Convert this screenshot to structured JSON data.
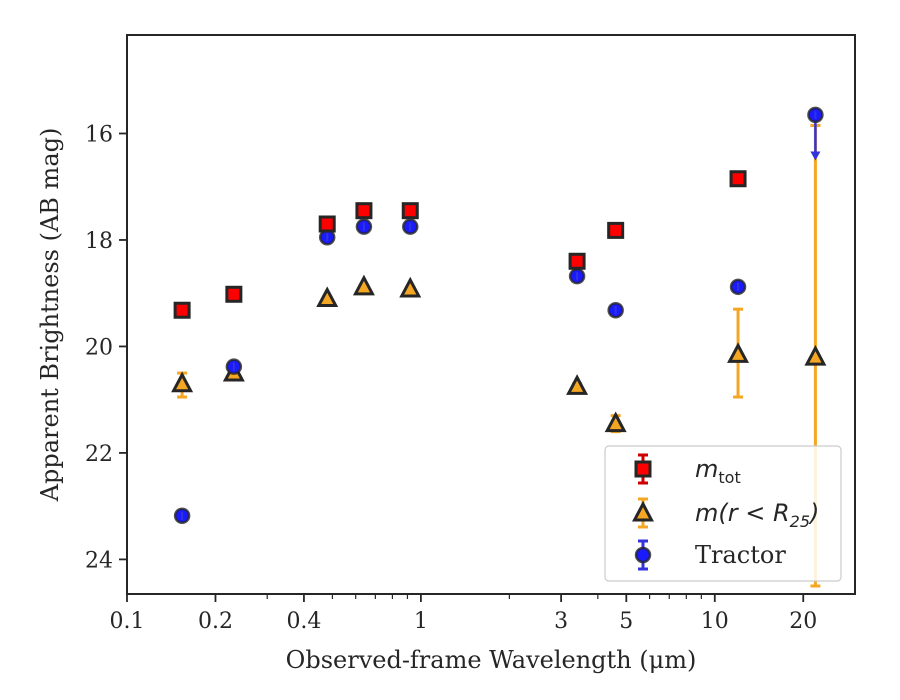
{
  "chart_data": {
    "type": "scatter",
    "xlabel": "Observed-frame Wavelength (μm)",
    "ylabel": "Apparent Brightness (AB mag)",
    "xscale": "log",
    "xlim": [
      0.1,
      30
    ],
    "ylim": [
      24.65,
      14.15
    ],
    "y_inverted": true,
    "x_ticks": [
      0.1,
      0.2,
      0.4,
      1,
      3,
      5,
      10,
      20
    ],
    "x_tick_labels": [
      "0.1",
      "0.2",
      "0.4",
      "1",
      "3",
      "5",
      "10",
      "20"
    ],
    "y_ticks": [
      16,
      18,
      20,
      22,
      24
    ],
    "y_tick_labels": [
      "16",
      "18",
      "20",
      "22",
      "24"
    ],
    "legend_position": "lower-right",
    "grid": false,
    "series": [
      {
        "name_parts": [
          "m",
          "tot"
        ],
        "marker": "square",
        "color": "#ff0000",
        "edge_color": "#262626",
        "errorbar_color": "#cc0000",
        "x": [
          0.154,
          0.231,
          0.48,
          0.64,
          0.92,
          3.4,
          4.6,
          12,
          22
        ],
        "y": [
          19.32,
          19.02,
          17.7,
          17.45,
          17.45,
          18.4,
          17.82,
          16.85,
          null
        ]
      },
      {
        "name_parts": [
          "m(r < R",
          "25",
          ")"
        ],
        "marker": "triangle",
        "color": "#f5a623",
        "edge_color": "#262626",
        "errorbar_color": "#f5a623",
        "x": [
          0.154,
          0.231,
          0.48,
          0.64,
          0.92,
          3.4,
          4.6,
          12,
          22
        ],
        "y": [
          20.7,
          20.5,
          19.1,
          18.88,
          18.92,
          20.75,
          21.45,
          20.15,
          20.2
        ],
        "yerr_low": [
          0.25,
          0.05,
          0.03,
          0.03,
          0.03,
          0.05,
          0.15,
          0.8,
          4.3
        ],
        "yerr_high": [
          0.2,
          0.05,
          0.03,
          0.03,
          0.03,
          0.05,
          0.15,
          0.85,
          4.35
        ]
      },
      {
        "name": "Tractor",
        "marker": "circle",
        "color": "#1a1aff",
        "edge_color": "#262626",
        "errorbar_color": "#3333dd",
        "x": [
          0.154,
          0.231,
          0.48,
          0.64,
          0.92,
          3.4,
          4.6,
          12,
          22
        ],
        "y": [
          23.18,
          20.38,
          17.95,
          17.75,
          17.75,
          18.68,
          19.32,
          18.88,
          15.65
        ],
        "upper_limit": [
          false,
          false,
          false,
          false,
          false,
          false,
          false,
          false,
          true
        ]
      }
    ]
  }
}
